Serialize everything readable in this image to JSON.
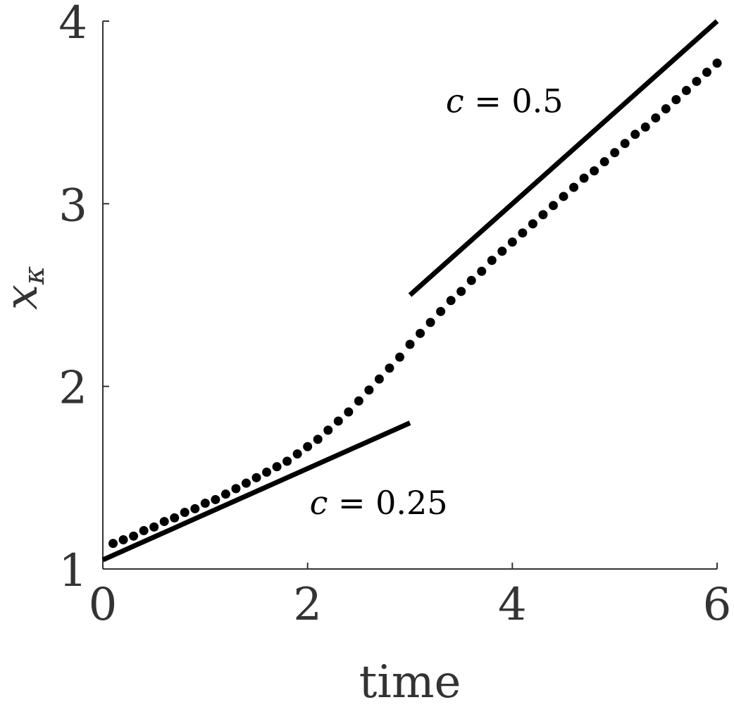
{
  "chart_data": {
    "type": "line",
    "xlabel": "time",
    "ylabel_main": "x",
    "ylabel_sub": "κ",
    "xlim": [
      0,
      6
    ],
    "ylim": [
      1,
      4
    ],
    "xticks": [
      0,
      2,
      4,
      6
    ],
    "yticks": [
      1,
      2,
      3,
      4
    ],
    "grid": false,
    "series": [
      {
        "style": "dotted",
        "color": "#000000",
        "points": [
          [
            0.1,
            1.14
          ],
          [
            0.2,
            1.16
          ],
          [
            0.3,
            1.18
          ],
          [
            0.4,
            1.21
          ],
          [
            0.5,
            1.23
          ],
          [
            0.6,
            1.26
          ],
          [
            0.7,
            1.28
          ],
          [
            0.8,
            1.31
          ],
          [
            0.9,
            1.33
          ],
          [
            1.0,
            1.36
          ],
          [
            1.1,
            1.38
          ],
          [
            1.2,
            1.41
          ],
          [
            1.3,
            1.44
          ],
          [
            1.4,
            1.47
          ],
          [
            1.5,
            1.5
          ],
          [
            1.6,
            1.53
          ],
          [
            1.7,
            1.56
          ],
          [
            1.8,
            1.59
          ],
          [
            1.9,
            1.63
          ],
          [
            2.0,
            1.67
          ],
          [
            2.1,
            1.71
          ],
          [
            2.2,
            1.76
          ],
          [
            2.3,
            1.81
          ],
          [
            2.4,
            1.86
          ],
          [
            2.5,
            1.92
          ],
          [
            2.6,
            1.98
          ],
          [
            2.7,
            2.04
          ],
          [
            2.8,
            2.1
          ],
          [
            2.9,
            2.16
          ],
          [
            3.0,
            2.23
          ],
          [
            3.1,
            2.29
          ],
          [
            3.2,
            2.35
          ],
          [
            3.3,
            2.41
          ],
          [
            3.4,
            2.47
          ],
          [
            3.5,
            2.52
          ],
          [
            3.6,
            2.58
          ],
          [
            3.7,
            2.63
          ],
          [
            3.8,
            2.69
          ],
          [
            3.9,
            2.74
          ],
          [
            4.0,
            2.79
          ],
          [
            4.1,
            2.84
          ],
          [
            4.2,
            2.89
          ],
          [
            4.3,
            2.94
          ],
          [
            4.4,
            2.99
          ],
          [
            4.5,
            3.04
          ],
          [
            4.6,
            3.09
          ],
          [
            4.7,
            3.14
          ],
          [
            4.8,
            3.18
          ],
          [
            4.9,
            3.23
          ],
          [
            5.0,
            3.28
          ],
          [
            5.1,
            3.33
          ],
          [
            5.2,
            3.38
          ],
          [
            5.3,
            3.42
          ],
          [
            5.4,
            3.47
          ],
          [
            5.5,
            3.52
          ],
          [
            5.6,
            3.57
          ],
          [
            5.7,
            3.62
          ],
          [
            5.8,
            3.67
          ],
          [
            5.9,
            3.72
          ],
          [
            6.0,
            3.77
          ]
        ]
      },
      {
        "style": "solid",
        "color": "#000000",
        "points": [
          [
            0,
            1.05
          ],
          [
            3,
            1.8
          ]
        ]
      },
      {
        "style": "solid",
        "color": "#000000",
        "points": [
          [
            3,
            2.5
          ],
          [
            6,
            4.0
          ]
        ]
      }
    ],
    "annotations": [
      {
        "var": "c",
        "eq": " = 0.5",
        "x": 3.35,
        "y": 3.5
      },
      {
        "var": "c",
        "eq": " = 0.25",
        "x": 2.02,
        "y": 1.3
      }
    ]
  }
}
